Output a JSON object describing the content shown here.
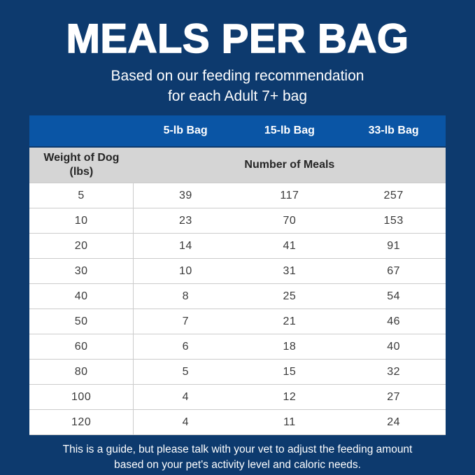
{
  "header": {
    "title": "MEALS PER BAG",
    "subtitle_line1": "Based on our feeding recommendation",
    "subtitle_line2": "for each Adult 7+ bag"
  },
  "table": {
    "bag_columns": [
      "5-lb Bag",
      "15-lb Bag",
      "33-lb Bag"
    ],
    "weight_header_line1": "Weight of Dog",
    "weight_header_line2": "(lbs)",
    "meals_header": "Number of Meals",
    "rows": [
      {
        "weight": "5",
        "meals": [
          "39",
          "117",
          "257"
        ]
      },
      {
        "weight": "10",
        "meals": [
          "23",
          "70",
          "153"
        ]
      },
      {
        "weight": "20",
        "meals": [
          "14",
          "41",
          "91"
        ]
      },
      {
        "weight": "30",
        "meals": [
          "10",
          "31",
          "67"
        ]
      },
      {
        "weight": "40",
        "meals": [
          "8",
          "25",
          "54"
        ]
      },
      {
        "weight": "50",
        "meals": [
          "7",
          "21",
          "46"
        ]
      },
      {
        "weight": "60",
        "meals": [
          "6",
          "18",
          "40"
        ]
      },
      {
        "weight": "80",
        "meals": [
          "5",
          "15",
          "32"
        ]
      },
      {
        "weight": "100",
        "meals": [
          "4",
          "12",
          "27"
        ]
      },
      {
        "weight": "120",
        "meals": [
          "4",
          "11",
          "24"
        ]
      }
    ]
  },
  "footer": {
    "line1": "This is a guide, but please talk with your vet to adjust the feeding amount",
    "line2": "based on your pet's activity level and caloric needs."
  },
  "colors": {
    "background_navy": "#0d3a6e",
    "header_blue": "#0a55a5",
    "subheader_gray": "#d5d5d5",
    "row_divider": "#cccccc",
    "table_text": "#3a3a3a",
    "text_white": "#ffffff"
  },
  "chart_data": {
    "type": "table",
    "title": "MEALS PER BAG",
    "subtitle": "Based on our feeding recommendation for each Adult 7+ bag",
    "columns": [
      "Weight of Dog (lbs)",
      "5-lb Bag",
      "15-lb Bag",
      "33-lb Bag"
    ],
    "value_label": "Number of Meals",
    "rows": [
      [
        5,
        39,
        117,
        257
      ],
      [
        10,
        23,
        70,
        153
      ],
      [
        20,
        14,
        41,
        91
      ],
      [
        30,
        10,
        31,
        67
      ],
      [
        40,
        8,
        25,
        54
      ],
      [
        50,
        7,
        21,
        46
      ],
      [
        60,
        6,
        18,
        40
      ],
      [
        80,
        5,
        15,
        32
      ],
      [
        100,
        4,
        12,
        27
      ],
      [
        120,
        4,
        11,
        24
      ]
    ],
    "note": "This is a guide, but please talk with your vet to adjust the feeding amount based on your pet's activity level and caloric needs."
  }
}
